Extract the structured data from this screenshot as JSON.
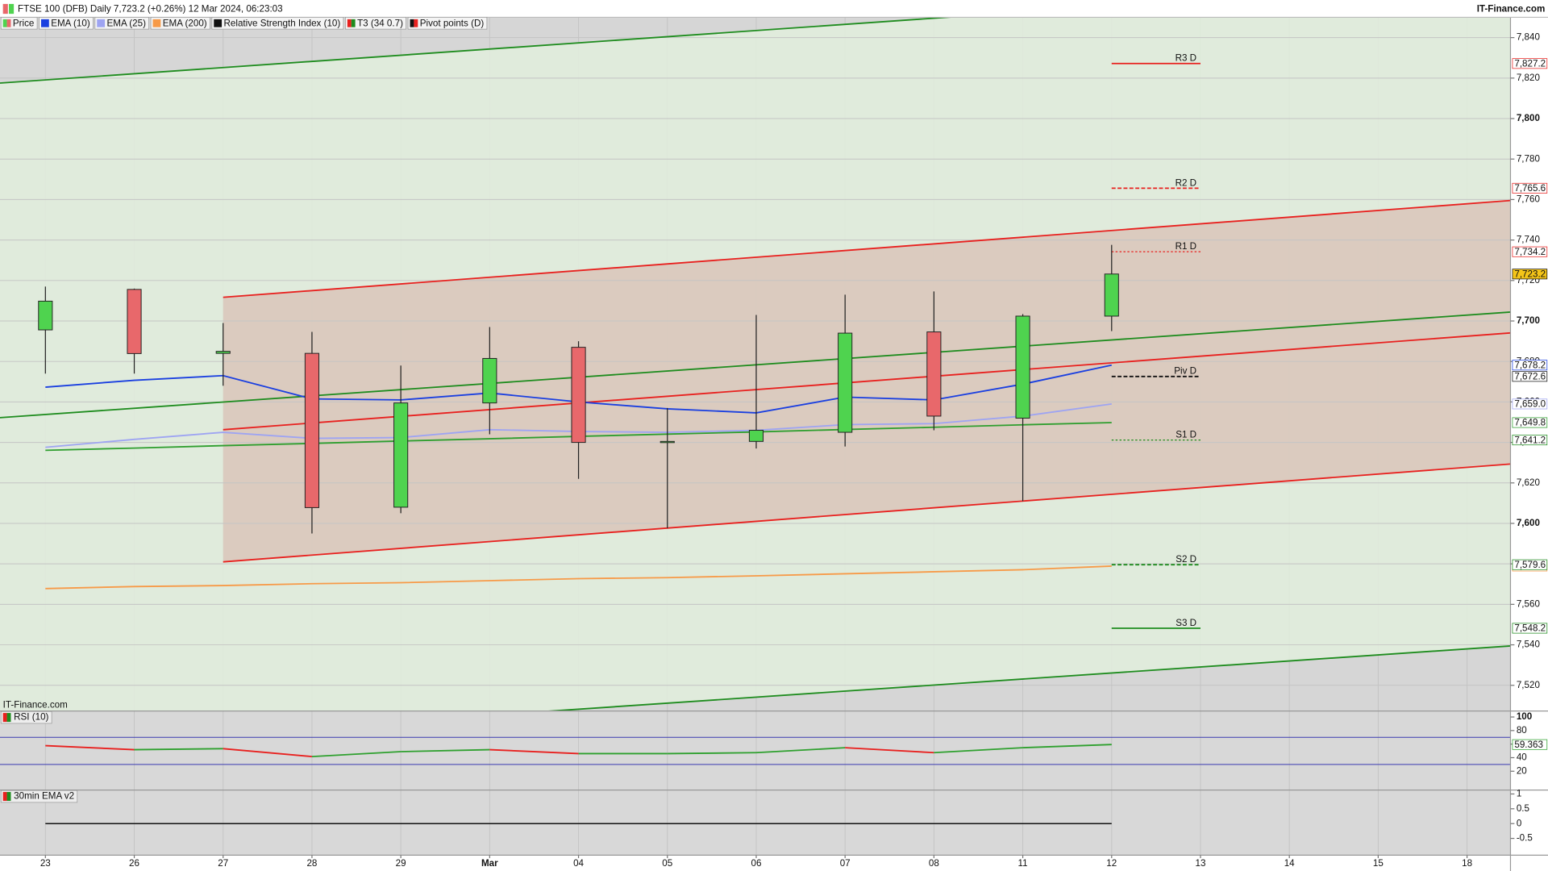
{
  "chart_data": [
    {
      "type": "candlestick",
      "title": "FTSE 100 (DFB) Daily 7,723.2 (+0.26%) 12 Mar 2024, 06:23:03",
      "source": "IT-Finance.com",
      "watermark": "IT-Finance.com",
      "legend": [
        {
          "name": "Price",
          "colors": [
            "#4fd34f",
            "#e8686b"
          ]
        },
        {
          "name": "EMA (10)",
          "colors": [
            "#1a3fe0"
          ]
        },
        {
          "name": "EMA (25)",
          "colors": [
            "#9ea4f2"
          ]
        },
        {
          "name": "EMA (200)",
          "colors": [
            "#f79a48"
          ]
        },
        {
          "name": "Relative Strength Index (10)",
          "colors": [
            "#111111"
          ]
        },
        {
          "name": "T3 (34 0.7)",
          "colors": [
            "#e8201e",
            "#1e8c1e"
          ]
        },
        {
          "name": "Pivot points (D)",
          "colors": [
            "#111111",
            "#e8201e"
          ]
        }
      ],
      "categories": [
        "23",
        "26",
        "27",
        "28",
        "29",
        "Mar",
        "04",
        "05",
        "06",
        "07",
        "08",
        "11",
        "12",
        "13",
        "14",
        "15",
        "18"
      ],
      "open": [
        7695.6,
        7715.6,
        7684,
        7684,
        7608,
        7659.5,
        7687,
        7640.5,
        7640.5,
        7645,
        7694.6,
        7652,
        7702.4,
        null,
        null,
        null,
        null
      ],
      "high": [
        7717,
        7716,
        7699,
        7694.6,
        7678,
        7697,
        7690,
        7657,
        7703,
        7713,
        7714.6,
        7703.4,
        7737.6,
        null,
        null,
        null,
        null
      ],
      "low": [
        7674,
        7674,
        7668,
        7595,
        7605,
        7644,
        7622,
        7597.6,
        7637,
        7638,
        7646,
        7611,
        7695,
        null,
        null,
        null,
        null
      ],
      "close": [
        7709.8,
        7683.9,
        7685,
        7607.8,
        7659.5,
        7681.5,
        7640,
        7640.5,
        7646,
        7694,
        7653,
        7702.4,
        7723.2,
        null,
        null,
        null,
        null
      ],
      "close_labels": [
        null,
        null,
        null,
        null,
        null,
        null,
        null,
        null,
        null,
        null,
        null,
        null,
        "7,723.2",
        null,
        null,
        null,
        null
      ],
      "up_color": "#4fd34f",
      "down_color": "#e8686b",
      "series": [
        {
          "color": "#1a3fe0",
          "values": [
            7667.3,
            7670.7,
            7673,
            7661.5,
            7661,
            7664.4,
            7660,
            7656.6,
            7654.6,
            7662.4,
            7661,
            7668.8,
            7678.2,
            null,
            null,
            null,
            null
          ],
          "value_labels": [
            null,
            null,
            null,
            null,
            null,
            null,
            null,
            null,
            null,
            null,
            null,
            null,
            "7,678.2",
            null,
            null,
            null,
            null
          ]
        },
        {
          "color": "#9ea4f2",
          "values": [
            7637.6,
            7641.5,
            7645,
            7642,
            7642.4,
            7646.3,
            7645.4,
            7645,
            7646,
            7648.8,
            7649.3,
            7653,
            7659,
            null,
            null,
            null,
            null
          ],
          "value_labels": [
            null,
            null,
            null,
            null,
            null,
            null,
            null,
            null,
            null,
            null,
            null,
            null,
            "7,659.0",
            null,
            null,
            null,
            null
          ]
        },
        {
          "color": "#f79a48",
          "values": [
            7567.8,
            7568.8,
            7569.3,
            7570.2,
            7570.7,
            7571.7,
            7572.7,
            7573.2,
            7574.1,
            7575.1,
            7576.1,
            7577.1,
            7578.9,
            null,
            null,
            null,
            null
          ],
          "value_labels": [
            null,
            null,
            null,
            null,
            null,
            null,
            null,
            null,
            null,
            null,
            null,
            null,
            "7,578.9",
            null,
            null,
            null,
            null
          ]
        },
        {
          "color": "#2e9e2e",
          "values": [
            7636.1,
            7637.2,
            7638.4,
            7639.5,
            7640.7,
            7641.8,
            7643,
            7644.1,
            7645.2,
            7646.4,
            7647.5,
            7648.7,
            7649.8,
            null,
            null,
            null,
            null
          ],
          "value_labels": [
            null,
            null,
            null,
            null,
            null,
            null,
            null,
            null,
            null,
            null,
            null,
            null,
            "7,649.8",
            null,
            null,
            null,
            null
          ]
        }
      ],
      "channels": [
        {
          "color": "#1e8c1e",
          "fill": "#e2eedd",
          "extend": "both",
          "lines": [
            {
              "x": [
                0,
                10
              ],
              "values": [
                7819.1,
                7849.6
              ]
            },
            {
              "x": [
                0,
                16
              ],
              "values": [
                7653.8,
                7702.9
              ]
            },
            {
              "x": [
                6,
                16
              ],
              "values": [
                7508.2,
                7538
              ]
            }
          ]
        },
        {
          "color": "#e8201e",
          "fill": "#d9c5ba",
          "extend": "right",
          "lines": [
            {
              "x": [
                2,
                16
              ],
              "values": [
                7711.7,
                7757.9
              ]
            },
            {
              "x": [
                2,
                16
              ],
              "values": [
                7646.3,
                7692.5
              ]
            },
            {
              "x": [
                2,
                16
              ],
              "values": [
                7581,
                7627.7
              ]
            }
          ]
        }
      ],
      "pivots": [
        {
          "label": "R3 D",
          "value": 7827.2,
          "value_label": "7,827.2",
          "color": "#e8201e",
          "dash": "solid"
        },
        {
          "label": "R2 D",
          "value": 7765.6,
          "value_label": "7,765.6",
          "color": "#e8201e",
          "dash": "dashed"
        },
        {
          "label": "R1 D",
          "value": 7734.2,
          "value_label": "7,734.2",
          "color": "#e8201e",
          "dash": "dotted"
        },
        {
          "label": "Piv D",
          "value": 7672.6,
          "value_label": "7,672.6",
          "color": "#111111",
          "dash": "dashed"
        },
        {
          "label": "S1 D",
          "value": 7641.2,
          "value_label": "7,641.2",
          "color": "#1e8c1e",
          "dash": "dotted"
        },
        {
          "label": "S2 D",
          "value": 7579.6,
          "value_label": "7,579.6",
          "color": "#1e8c1e",
          "dash": "dashed"
        },
        {
          "label": "S3 D",
          "value": 7548.2,
          "value_label": "7,548.2",
          "color": "#1e8c1e",
          "dash": "solid"
        }
      ],
      "pivot_x": [
        12,
        13
      ],
      "ylim": [
        7507.3,
        7849.8
      ],
      "yticks": [
        {
          "value": 7520,
          "label": "7,520"
        },
        {
          "value": 7540,
          "label": "7,540"
        },
        {
          "value": 7560,
          "label": "7,560"
        },
        {
          "value": 7580,
          "label": "7,580"
        },
        {
          "value": 7600,
          "label": "7,600"
        },
        {
          "value": 7620,
          "label": "7,620"
        },
        {
          "value": 7640,
          "label": "7,640"
        },
        {
          "value": 7660,
          "label": "7,660"
        },
        {
          "value": 7680,
          "label": "7,680"
        },
        {
          "value": 7700,
          "label": "7,700"
        },
        {
          "value": 7720,
          "label": "7,720"
        },
        {
          "value": 7740,
          "label": "7,740"
        },
        {
          "value": 7760,
          "label": "7,760"
        },
        {
          "value": 7780,
          "label": "7,780"
        },
        {
          "value": 7800,
          "label": "7,800"
        },
        {
          "value": 7820,
          "label": "7,820"
        },
        {
          "value": 7840,
          "label": "7,840"
        }
      ],
      "grid": true
    },
    {
      "type": "line",
      "title": "RSI (10)",
      "values": [
        57.7,
        51.8,
        53.3,
        41.6,
        48.9,
        51.8,
        46,
        46,
        47.4,
        54.7,
        47.4,
        54.7,
        59.363,
        null,
        null,
        null,
        null
      ],
      "value_labels": [
        null,
        null,
        null,
        null,
        null,
        null,
        null,
        null,
        null,
        null,
        null,
        null,
        "59.363",
        null,
        null,
        null,
        null
      ],
      "up_color": "#2ea02e",
      "down_color": "#e8201e",
      "levels": [
        70,
        30
      ],
      "level_color": "#3a3ab0",
      "ylim": [
        -7.7,
        108.8
      ],
      "yticks": [
        20,
        40,
        60,
        80,
        100
      ]
    },
    {
      "type": "line",
      "title": "30min EMA v2",
      "color": "#111111",
      "values": [
        0,
        0,
        0,
        0,
        0,
        0,
        0,
        0,
        0,
        0,
        0,
        0,
        0,
        null,
        null,
        null,
        null
      ],
      "ylim": [
        -1.067,
        1.133
      ],
      "yticks": [
        1,
        0.5,
        0,
        -0.5
      ]
    }
  ]
}
